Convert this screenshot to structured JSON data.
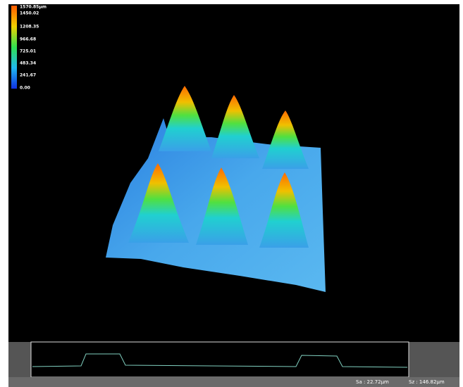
{
  "colorbar": {
    "labels": [
      "1570.85μm",
      "1450.02",
      "1208.35",
      "966.68",
      "725.01",
      "483.34",
      "241.67",
      "0.00"
    ]
  },
  "status": {
    "sa": "Sa : 22.72μm",
    "sz": "Sz : 146.82μm"
  }
}
